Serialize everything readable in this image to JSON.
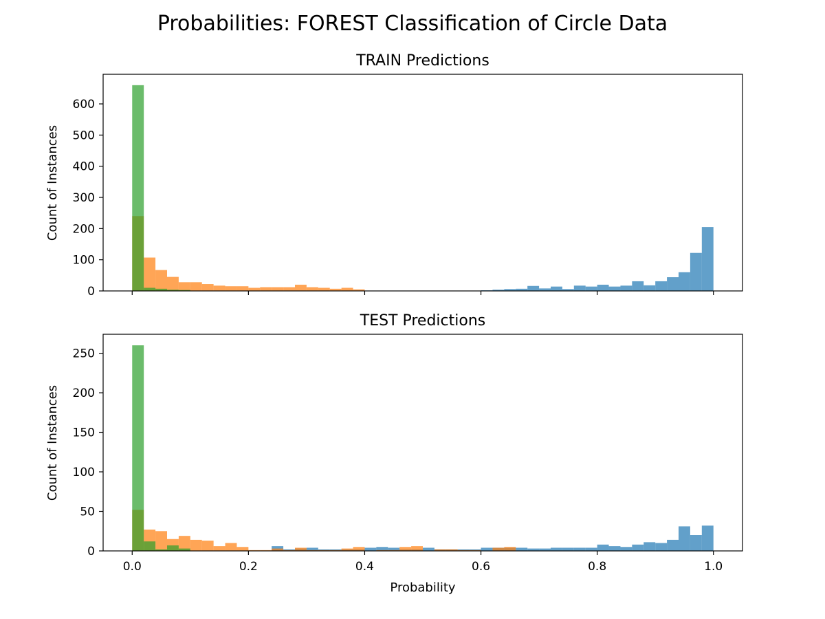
{
  "figure": {
    "title": "Probabilities:  FOREST Classification of Circle Data"
  },
  "colors": {
    "blue": "#1f77b4",
    "orange": "#ff7f0e",
    "green": "#2ca02c",
    "bar_alpha": 0.7
  },
  "chart_data": [
    {
      "type": "bar",
      "title": "TRAIN Predictions",
      "xlabel": "",
      "ylabel": "Count of Instances",
      "xlim": [
        -0.05,
        1.05
      ],
      "ylim": [
        0,
        695
      ],
      "xticks": [
        0.0,
        0.2,
        0.4,
        0.6,
        0.8,
        1.0
      ],
      "xtick_labels_visible": false,
      "yticks": [
        0,
        100,
        200,
        300,
        400,
        500,
        600
      ],
      "bin_width": 0.02,
      "bin_starts": [
        0.0,
        0.02,
        0.04,
        0.06,
        0.08,
        0.1,
        0.12,
        0.14,
        0.16,
        0.18,
        0.2,
        0.22,
        0.24,
        0.26,
        0.28,
        0.3,
        0.32,
        0.34,
        0.36,
        0.38,
        0.4,
        0.42,
        0.44,
        0.46,
        0.48,
        0.5,
        0.52,
        0.54,
        0.56,
        0.58,
        0.6,
        0.62,
        0.64,
        0.66,
        0.68,
        0.7,
        0.72,
        0.74,
        0.76,
        0.78,
        0.8,
        0.82,
        0.84,
        0.86,
        0.88,
        0.9,
        0.92,
        0.94,
        0.96,
        0.98
      ],
      "series": [
        {
          "color_key": "blue",
          "values": [
            0,
            0,
            0,
            0,
            0,
            0,
            0,
            0,
            0,
            0,
            0,
            0,
            0,
            0,
            0,
            0,
            0,
            0,
            0,
            0,
            0,
            0,
            0,
            0,
            0,
            0,
            0,
            0,
            0,
            0,
            2,
            4,
            6,
            7,
            16,
            8,
            14,
            6,
            17,
            14,
            20,
            14,
            17,
            31,
            18,
            31,
            44,
            60,
            122,
            205
          ]
        },
        {
          "color_key": "orange",
          "values": [
            240,
            107,
            67,
            45,
            28,
            28,
            22,
            17,
            15,
            15,
            10,
            12,
            12,
            12,
            20,
            12,
            10,
            7,
            10,
            5,
            0,
            0,
            0,
            0,
            0,
            0,
            0,
            0,
            0,
            0,
            0,
            0,
            0,
            0,
            0,
            0,
            0,
            0,
            0,
            0,
            0,
            0,
            0,
            0,
            0,
            0,
            0,
            0,
            0,
            0
          ]
        },
        {
          "color_key": "green",
          "values": [
            660,
            10,
            7,
            4,
            3,
            0,
            0,
            0,
            0,
            0,
            0,
            0,
            0,
            0,
            0,
            0,
            0,
            0,
            0,
            0,
            0,
            0,
            0,
            0,
            0,
            0,
            0,
            0,
            0,
            0,
            0,
            0,
            0,
            0,
            0,
            0,
            0,
            0,
            0,
            0,
            0,
            0,
            0,
            0,
            0,
            0,
            0,
            0,
            0,
            0
          ]
        }
      ]
    },
    {
      "type": "bar",
      "title": "TEST Predictions",
      "xlabel": "Probability",
      "ylabel": "Count of Instances",
      "xlim": [
        -0.05,
        1.05
      ],
      "ylim": [
        0,
        274
      ],
      "xticks": [
        0.0,
        0.2,
        0.4,
        0.6,
        0.8,
        1.0
      ],
      "xtick_labels": [
        "0.0",
        "0.2",
        "0.4",
        "0.6",
        "0.8",
        "1.0"
      ],
      "xtick_labels_visible": true,
      "yticks": [
        0,
        50,
        100,
        150,
        200,
        250
      ],
      "bin_width": 0.02,
      "bin_starts": [
        0.0,
        0.02,
        0.04,
        0.06,
        0.08,
        0.1,
        0.12,
        0.14,
        0.16,
        0.18,
        0.2,
        0.22,
        0.24,
        0.26,
        0.28,
        0.3,
        0.32,
        0.34,
        0.36,
        0.38,
        0.4,
        0.42,
        0.44,
        0.46,
        0.48,
        0.5,
        0.52,
        0.54,
        0.56,
        0.58,
        0.6,
        0.62,
        0.64,
        0.66,
        0.68,
        0.7,
        0.72,
        0.74,
        0.76,
        0.78,
        0.8,
        0.82,
        0.84,
        0.86,
        0.88,
        0.9,
        0.92,
        0.94,
        0.96,
        0.98
      ],
      "series": [
        {
          "color_key": "blue",
          "values": [
            0,
            0,
            0,
            0,
            0,
            0,
            0,
            0,
            0,
            0,
            0,
            0,
            6,
            2,
            3,
            4,
            2,
            2,
            2,
            2,
            4,
            5,
            4,
            2,
            2,
            4,
            2,
            2,
            2,
            2,
            4,
            4,
            4,
            4,
            3,
            3,
            4,
            4,
            4,
            4,
            8,
            6,
            5,
            8,
            11,
            10,
            14,
            31,
            20,
            32
          ]
        },
        {
          "color_key": "orange",
          "values": [
            52,
            27,
            25,
            15,
            19,
            14,
            13,
            6,
            10,
            5,
            1,
            1,
            3,
            1,
            4,
            1,
            1,
            1,
            3,
            5,
            0,
            1,
            1,
            5,
            6,
            0,
            2,
            2,
            1,
            1,
            0,
            4,
            5,
            0,
            0,
            0,
            0,
            0,
            0,
            0,
            0,
            0,
            0,
            0,
            0,
            0,
            0,
            0,
            0,
            0
          ]
        },
        {
          "color_key": "green",
          "values": [
            260,
            12,
            2,
            7,
            3,
            0,
            0,
            0,
            0,
            0,
            0,
            0,
            0,
            0,
            0,
            0,
            0,
            0,
            0,
            0,
            0,
            0,
            0,
            0,
            0,
            0,
            0,
            0,
            0,
            0,
            0,
            0,
            0,
            0,
            0,
            0,
            0,
            0,
            0,
            0,
            0,
            0,
            0,
            0,
            0,
            0,
            0,
            0,
            0,
            0
          ]
        }
      ]
    }
  ]
}
